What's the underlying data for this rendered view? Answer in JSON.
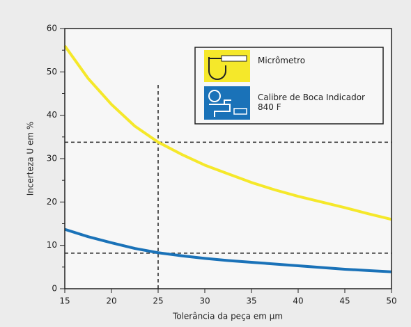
{
  "chart_data": {
    "type": "line",
    "x_label": "Tolerância da peça em µm",
    "y_label": "Incerteza U em %",
    "x": [
      15,
      17.5,
      20,
      22.5,
      25,
      27.5,
      30,
      32.5,
      35,
      37.5,
      40,
      42.5,
      45,
      47.5,
      50
    ],
    "series": [
      {
        "name": "Micrômetro",
        "color": "#f5e82a",
        "values": [
          56,
          48.5,
          42.5,
          37.5,
          33.8,
          31,
          28.5,
          26.5,
          24.5,
          22.8,
          21.3,
          20,
          18.7,
          17.3,
          16
        ]
      },
      {
        "name": "Calibre de Boca Indicador 840 F",
        "color": "#1a72b8",
        "values": [
          13.7,
          12,
          10.6,
          9.3,
          8.3,
          7.6,
          7,
          6.5,
          6.1,
          5.7,
          5.3,
          4.9,
          4.5,
          4.2,
          3.9
        ]
      }
    ],
    "xlim": [
      15,
      50
    ],
    "xticks": [
      15,
      20,
      25,
      30,
      35,
      40,
      45,
      50
    ],
    "ylim": [
      0,
      60
    ],
    "yticks": [
      0,
      10,
      20,
      30,
      40,
      50,
      60
    ],
    "yminorticks": [
      5,
      15,
      25,
      35,
      45,
      55
    ],
    "vlines": [
      25
    ],
    "hlines": [
      33.8,
      8.2
    ]
  }
}
